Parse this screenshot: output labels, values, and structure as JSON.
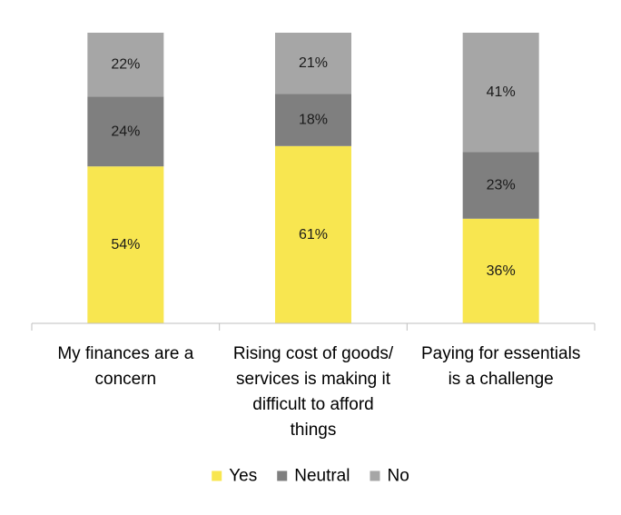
{
  "chart_data": {
    "type": "bar",
    "stacked": true,
    "percent_stacked": true,
    "categories": [
      [
        "My finances are a",
        "concern"
      ],
      [
        "Rising cost of goods/",
        "services is making it",
        "difficult to afford",
        "things"
      ],
      [
        "Paying for essentials",
        "is a challenge"
      ]
    ],
    "series": [
      {
        "name": "Yes",
        "values": [
          54,
          61,
          36
        ],
        "labels": [
          "54%",
          "61%",
          "36%"
        ],
        "color": "#F8E650"
      },
      {
        "name": "Neutral",
        "values": [
          24,
          18,
          23
        ],
        "labels": [
          "24%",
          "18%",
          "23%"
        ],
        "color": "#7F7F7F"
      },
      {
        "name": "No",
        "values": [
          22,
          21,
          41
        ],
        "labels": [
          "22%",
          "21%",
          "41%"
        ],
        "color": "#A6A6A6"
      }
    ],
    "ylim": [
      0,
      100
    ],
    "grid": false,
    "legend_position": "bottom",
    "title": "",
    "xlabel": "",
    "ylabel": ""
  }
}
